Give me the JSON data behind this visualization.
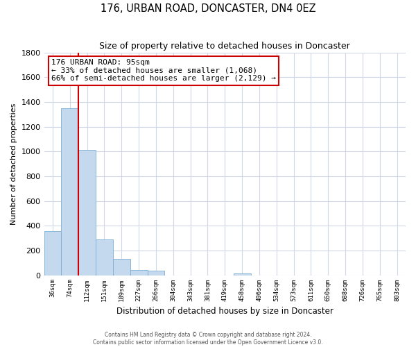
{
  "title": "176, URBAN ROAD, DONCASTER, DN4 0EZ",
  "subtitle": "Size of property relative to detached houses in Doncaster",
  "xlabel": "Distribution of detached houses by size in Doncaster",
  "ylabel": "Number of detached properties",
  "bin_labels": [
    "36sqm",
    "74sqm",
    "112sqm",
    "151sqm",
    "189sqm",
    "227sqm",
    "266sqm",
    "304sqm",
    "343sqm",
    "381sqm",
    "419sqm",
    "458sqm",
    "496sqm",
    "534sqm",
    "573sqm",
    "611sqm",
    "650sqm",
    "688sqm",
    "726sqm",
    "765sqm",
    "803sqm"
  ],
  "bar_values": [
    355,
    1350,
    1010,
    290,
    130,
    45,
    35,
    0,
    0,
    0,
    0,
    15,
    0,
    0,
    0,
    0,
    0,
    0,
    0,
    0,
    0
  ],
  "bar_color": "#c5d9ee",
  "bar_edge_color": "#7bafd4",
  "property_line_color": "#cc0000",
  "annotation_line1": "176 URBAN ROAD: 95sqm",
  "annotation_line2": "← 33% of detached houses are smaller (1,068)",
  "annotation_line3": "66% of semi-detached houses are larger (2,129) →",
  "annotation_box_color": "#ffffff",
  "annotation_box_edge": "#cc0000",
  "ylim": [
    0,
    1800
  ],
  "yticks": [
    0,
    200,
    400,
    600,
    800,
    1000,
    1200,
    1400,
    1600,
    1800
  ],
  "footer_line1": "Contains HM Land Registry data © Crown copyright and database right 2024.",
  "footer_line2": "Contains public sector information licensed under the Open Government Licence v3.0.",
  "background_color": "#ffffff",
  "grid_color": "#d0d8e8"
}
